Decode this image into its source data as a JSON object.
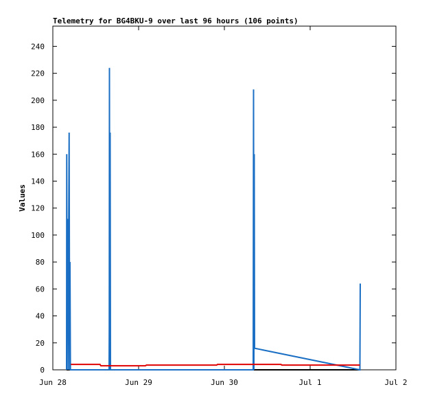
{
  "chart_data": {
    "type": "line",
    "title": "Telemetry for BG4BKU-9 over last 96 hours (106 points)",
    "y_label": "Values",
    "xlim": [
      0,
      4
    ],
    "xticks": [
      {
        "value": 0,
        "label": "Jun 28"
      },
      {
        "value": 1,
        "label": "Jun 29"
      },
      {
        "value": 2,
        "label": "Jun 30"
      },
      {
        "value": 3,
        "label": "Jul 1"
      },
      {
        "value": 4,
        "label": "Jul 2"
      }
    ],
    "ylim": [
      0,
      255
    ],
    "yticks": [
      0,
      20,
      40,
      60,
      80,
      100,
      120,
      140,
      160,
      180,
      200,
      220,
      240
    ],
    "series": [
      {
        "color": "#000000",
        "x": [
          0.16,
          3.58
        ],
        "values": [
          0,
          0
        ]
      },
      {
        "color": "#1a6fc4",
        "x": [
          0.16,
          0.162,
          0.165,
          0.17,
          0.178,
          0.19,
          0.196,
          0.2,
          0.205,
          0.656,
          0.658,
          0.66,
          0.664,
          0.668,
          0.672,
          2.336,
          2.338,
          2.34,
          2.344,
          2.348,
          2.352,
          3.58,
          3.584
        ],
        "values": [
          0,
          160,
          64,
          112,
          0,
          176,
          0,
          80,
          0,
          0,
          32,
          224,
          0,
          176,
          0,
          0,
          104,
          208,
          0,
          160,
          16,
          0,
          64
        ]
      },
      {
        "color": "#e00000",
        "x": [
          0.21,
          0.55,
          0.56,
          1.08,
          1.09,
          1.91,
          1.92,
          2.66,
          2.67,
          3.58
        ],
        "values": [
          4,
          4,
          3,
          3,
          3.5,
          3.5,
          4,
          4,
          3.5,
          3.5
        ]
      }
    ]
  }
}
